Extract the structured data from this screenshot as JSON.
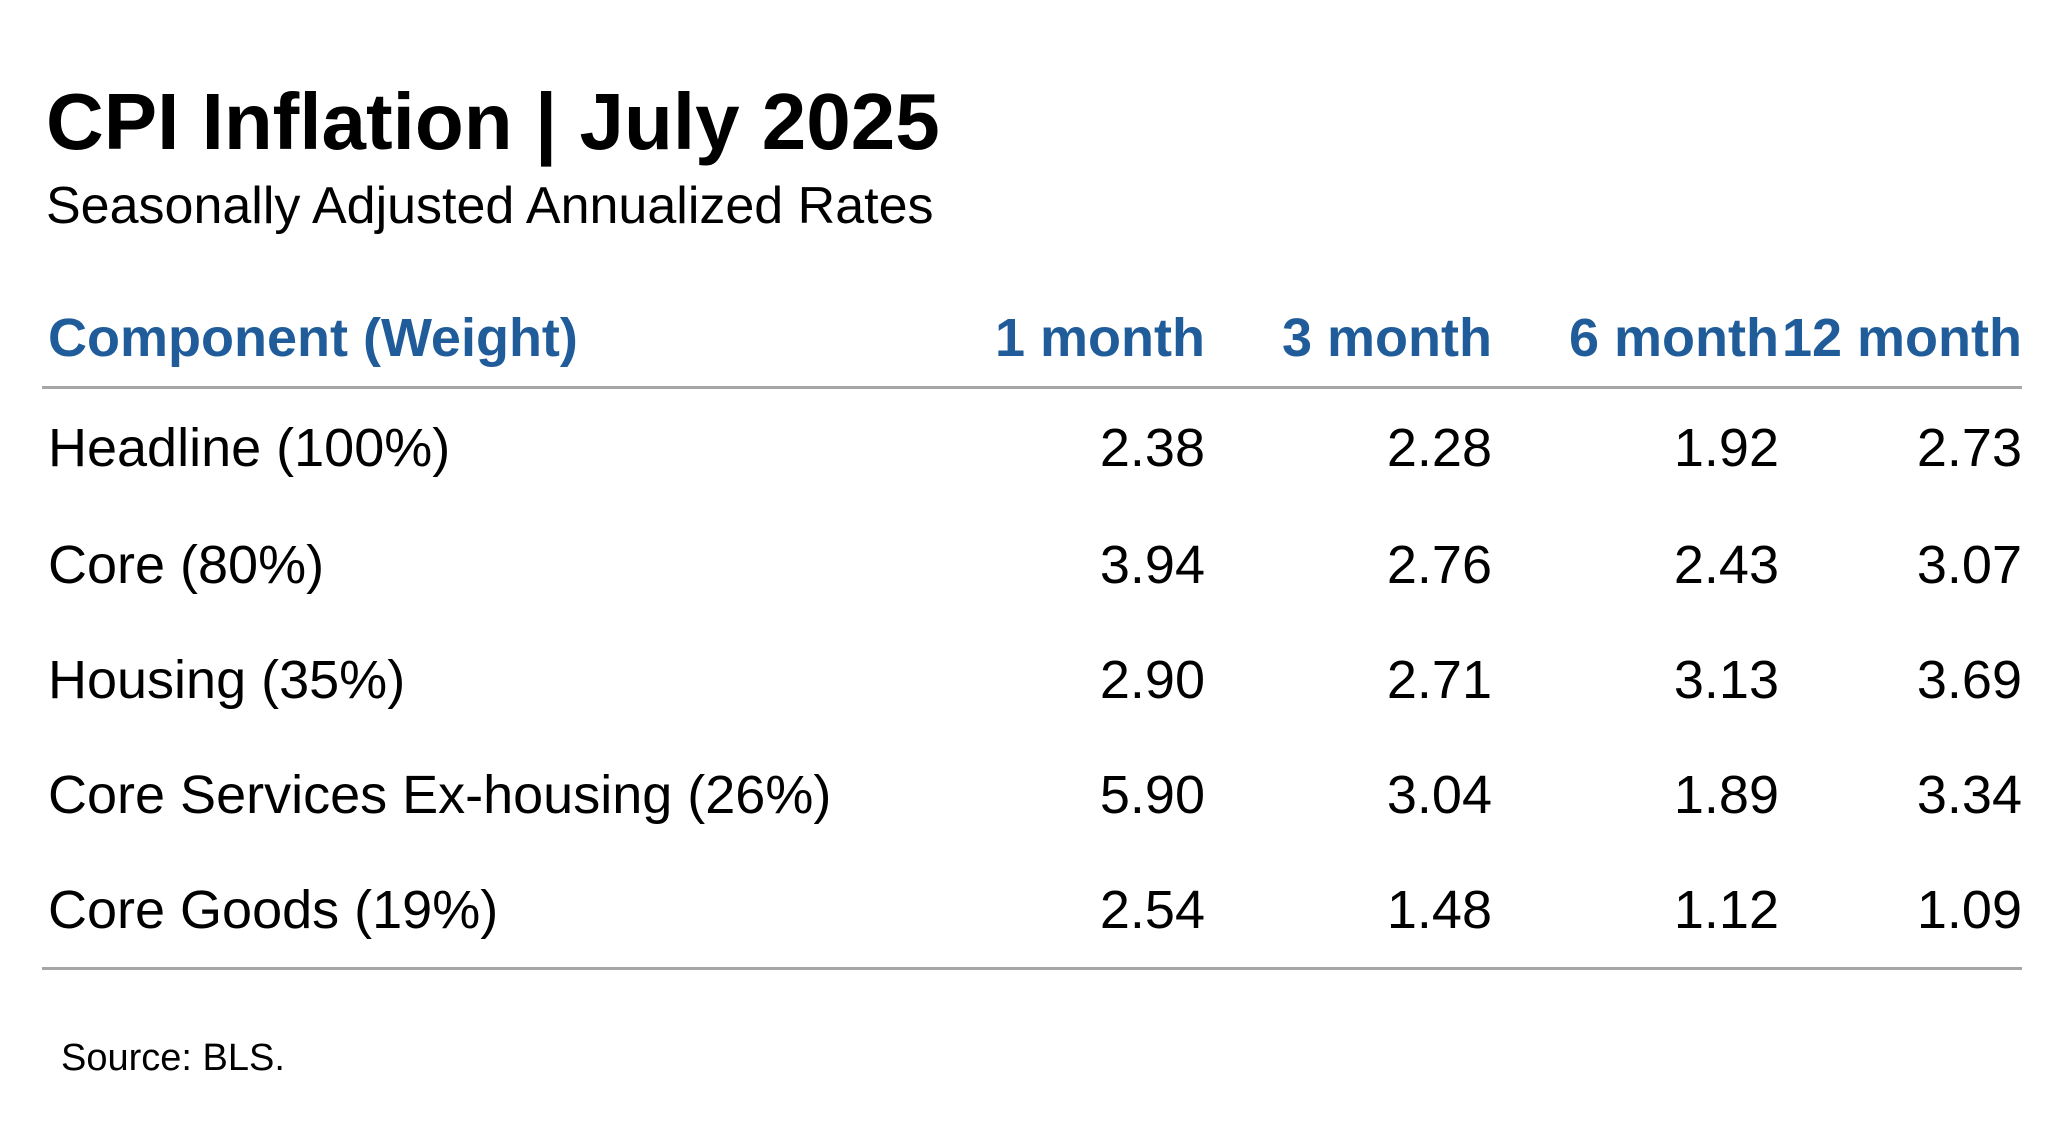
{
  "chart_data": {
    "type": "table",
    "title": "CPI Inflation | July 2025",
    "subtitle": "Seasonally Adjusted Annualized Rates",
    "header_color": "#1F5C99",
    "columns": [
      "Component (Weight)",
      "1 month",
      "3 month",
      "6 month",
      "12 month"
    ],
    "rows": [
      {
        "label": "Headline (100%)",
        "values": [
          "2.38",
          "2.28",
          "1.92",
          "2.73"
        ]
      },
      {
        "label": "Core (80%)",
        "values": [
          "3.94",
          "2.76",
          "2.43",
          "3.07"
        ]
      },
      {
        "label": "Housing (35%)",
        "values": [
          "2.90",
          "2.71",
          "3.13",
          "3.69"
        ]
      },
      {
        "label": "Core Services Ex-housing (26%)",
        "values": [
          "5.90",
          "3.04",
          "1.89",
          "3.34"
        ]
      },
      {
        "label": "Core Goods (19%)",
        "values": [
          "2.54",
          "1.48",
          "1.12",
          "1.09"
        ]
      }
    ],
    "source": "Source: BLS."
  }
}
